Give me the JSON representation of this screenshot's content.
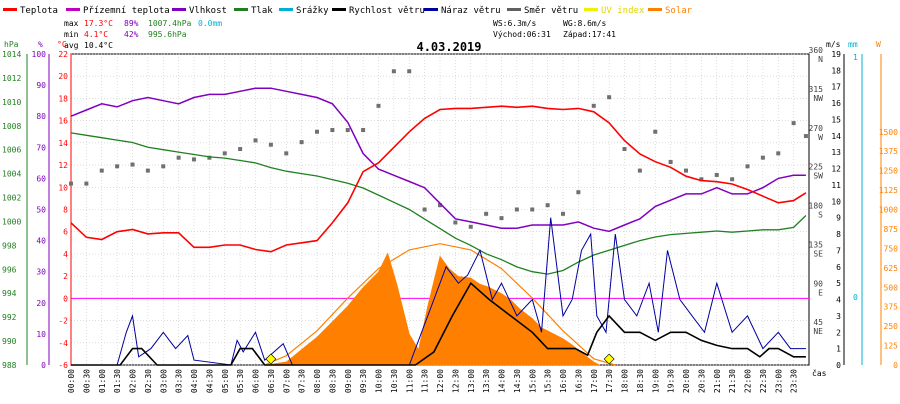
{
  "legend": [
    {
      "label": "Teplota",
      "color": "#ff0000"
    },
    {
      "label": "Přízemní teplota",
      "color": "#c000c0"
    },
    {
      "label": "Vlhkost",
      "color": "#8000c0"
    },
    {
      "label": "Tlak",
      "color": "#208020"
    },
    {
      "label": "Srážky",
      "color": "#00b0d0"
    },
    {
      "label": "Rychlost větru",
      "color": "#000000"
    },
    {
      "label": "Náraz větru",
      "color": "#0000a0"
    },
    {
      "label": "Směr větru",
      "color": "#606060"
    },
    {
      "label": "UV index",
      "color": "#f0f000"
    },
    {
      "label": "Solar",
      "color": "#ff8000"
    }
  ],
  "stats": {
    "max_label": "max",
    "max_temp": "17.3°C",
    "max_hum": "89%",
    "max_press": "1007.4hPa",
    "max_rain": "0.0mm",
    "min_label": "min",
    "min_temp": "4.1°C",
    "min_hum": "42%",
    "min_press": "995.6hPa",
    "avg_label": "avg",
    "avg_temp": "10.4°C",
    "ws": "WS:6.3m/s",
    "wg": "WG:8.6m/s",
    "sunrise": "Východ:06:31",
    "sunset": "Západ:17:41"
  },
  "axis_units": {
    "hpa": "hPa",
    "pct": "%",
    "temp": "°C",
    "ms": "m/s",
    "mm": "mm",
    "w": "W",
    "cas": "čas"
  },
  "chart_data": {
    "type": "line",
    "title": "4.03.2019",
    "xlabel": "čas",
    "x_ticks": [
      "00:00",
      "00:30",
      "01:00",
      "01:30",
      "02:00",
      "02:30",
      "03:00",
      "03:30",
      "04:00",
      "04:30",
      "05:00",
      "05:30",
      "06:00",
      "06:30",
      "07:00",
      "07:30",
      "08:00",
      "08:30",
      "09:00",
      "09:30",
      "10:00",
      "10:30",
      "11:00",
      "11:30",
      "12:00",
      "12:30",
      "13:00",
      "13:30",
      "14:00",
      "14:30",
      "15:00",
      "15:30",
      "16:00",
      "16:30",
      "17:00",
      "17:30",
      "18:00",
      "18:30",
      "19:00",
      "19:30",
      "20:00",
      "20:30",
      "21:00",
      "21:30",
      "22:00",
      "22:30",
      "23:00",
      "23:30"
    ],
    "axes": {
      "pressure_hpa": {
        "ylim": [
          988,
          1014
        ],
        "ticks": [
          "1014",
          "1012",
          "1010",
          "1008",
          "1006",
          "1004",
          "1002",
          "1000",
          "998",
          "996",
          "994",
          "992",
          "990",
          "988"
        ]
      },
      "humidity_pct": {
        "ylim": [
          0,
          100
        ],
        "ticks": [
          "100",
          "90",
          "80",
          "70",
          "60",
          "50",
          "40",
          "30",
          "20",
          "10",
          "0"
        ]
      },
      "temperature_c": {
        "ylim": [
          -6,
          22
        ],
        "ticks": [
          "22",
          "20",
          "18",
          "16",
          "14",
          "12",
          "10",
          "8",
          "6",
          "4",
          "2",
          "0",
          "-2",
          "-4",
          "-6"
        ]
      },
      "wind_dir": {
        "ticks": [
          "360",
          "315",
          "270",
          "225",
          "180",
          "135",
          "90",
          "45"
        ],
        "labels": [
          "N",
          "NW",
          "W",
          "SW",
          "S",
          "SE",
          "E",
          "NE"
        ]
      },
      "wind_ms": {
        "ylim": [
          0,
          19
        ],
        "ticks": [
          "19",
          "18",
          "17",
          "16",
          "15",
          "14",
          "13",
          "12",
          "11",
          "10",
          "9",
          "8",
          "7",
          "6",
          "5",
          "4",
          "3",
          "2",
          "1",
          "0"
        ]
      },
      "rain_mm": {
        "ticks": [
          "1",
          "0"
        ]
      },
      "solar_w": {
        "ylim": [
          0,
          2000
        ],
        "ticks": [
          "1500",
          "1375",
          "1250",
          "1125",
          "1000",
          "875",
          "750",
          "625",
          "500",
          "375",
          "250",
          "125",
          "0"
        ]
      }
    },
    "series": [
      {
        "name": "Teplota",
        "unit": "°C",
        "x": [
          0,
          0.5,
          1,
          1.5,
          2,
          2.5,
          3,
          3.5,
          4,
          4.5,
          5,
          5.5,
          6,
          6.5,
          7,
          7.5,
          8,
          8.5,
          9,
          9.5,
          10,
          10.5,
          11,
          11.5,
          12,
          12.5,
          13,
          13.5,
          14,
          14.5,
          15,
          15.5,
          16,
          16.5,
          17,
          17.5,
          18,
          18.5,
          19,
          19.5,
          20,
          20.5,
          21,
          21.5,
          22,
          22.5,
          23,
          23.5,
          23.9
        ],
        "values": [
          6.8,
          5.5,
          5.3,
          6.0,
          6.2,
          5.8,
          5.9,
          5.9,
          4.6,
          4.6,
          4.8,
          4.8,
          4.4,
          4.2,
          4.8,
          5.0,
          5.2,
          6.8,
          8.6,
          11.4,
          12.2,
          13.6,
          15.0,
          16.2,
          17.0,
          17.1,
          17.1,
          17.2,
          17.3,
          17.2,
          17.3,
          17.1,
          17.0,
          17.1,
          16.8,
          15.8,
          14.2,
          13.0,
          12.3,
          11.8,
          11.0,
          10.6,
          10.5,
          10.3,
          9.8,
          9.2,
          8.6,
          8.8,
          9.5
        ]
      },
      {
        "name": "Vlhkost",
        "unit": "%",
        "x": [
          0,
          0.5,
          1,
          1.5,
          2,
          2.5,
          3,
          3.5,
          4,
          4.5,
          5,
          5.5,
          6,
          6.5,
          7,
          7.5,
          8,
          8.5,
          9,
          9.5,
          10,
          10.5,
          11,
          11.5,
          12,
          12.5,
          13,
          13.5,
          14,
          14.5,
          15,
          15.5,
          16,
          16.5,
          17,
          17.5,
          18,
          18.5,
          19,
          19.5,
          20,
          20.5,
          21,
          21.5,
          22,
          22.5,
          23,
          23.5,
          23.9
        ],
        "values": [
          80,
          82,
          84,
          83,
          85,
          86,
          85,
          84,
          86,
          87,
          87,
          88,
          89,
          89,
          88,
          87,
          86,
          84,
          78,
          68,
          63,
          61,
          59,
          57,
          52,
          47,
          46,
          45,
          44,
          44,
          45,
          45,
          45,
          46,
          44,
          43,
          45,
          47,
          51,
          53,
          55,
          55,
          57,
          55,
          55,
          57,
          60,
          61,
          61
        ]
      },
      {
        "name": "Tlak",
        "unit": "hPa",
        "x": [
          0,
          0.5,
          1,
          1.5,
          2,
          2.5,
          3,
          3.5,
          4,
          4.5,
          5,
          5.5,
          6,
          6.5,
          7,
          7.5,
          8,
          8.5,
          9,
          9.5,
          10,
          10.5,
          11,
          11.5,
          12,
          12.5,
          13,
          13.5,
          14,
          14.5,
          15,
          15.5,
          16,
          16.5,
          17,
          17.5,
          18,
          18.5,
          19,
          19.5,
          20,
          20.5,
          21,
          21.5,
          22,
          22.5,
          23,
          23.5,
          23.9
        ],
        "values": [
          1007.4,
          1007.2,
          1007.0,
          1006.8,
          1006.6,
          1006.2,
          1006.0,
          1005.8,
          1005.6,
          1005.4,
          1005.3,
          1005.1,
          1004.9,
          1004.5,
          1004.2,
          1004.0,
          1003.8,
          1003.5,
          1003.2,
          1002.8,
          1002.2,
          1001.6,
          1001.0,
          1000.2,
          999.4,
          998.6,
          998.0,
          997.3,
          996.8,
          996.2,
          995.8,
          995.6,
          995.9,
          996.6,
          997.2,
          997.6,
          998.0,
          998.4,
          998.7,
          998.9,
          999.0,
          999.1,
          999.2,
          999.1,
          999.2,
          999.3,
          999.3,
          999.5,
          1000.5
        ]
      },
      {
        "name": "Rychlost větru",
        "unit": "m/s",
        "x": [
          0,
          1.6,
          2.0,
          2.3,
          2.8,
          5.2,
          5.5,
          5.9,
          6.3,
          7.5,
          11.2,
          11.8,
          12.4,
          13.0,
          13.6,
          14.3,
          15.0,
          15.5,
          16.0,
          16.4,
          16.8,
          17.1,
          17.5,
          18.0,
          18.5,
          19.0,
          19.5,
          20.0,
          20.5,
          21.0,
          21.5,
          22.0,
          22.4,
          22.7,
          23.0,
          23.5,
          23.9
        ],
        "values": [
          0,
          0,
          1,
          1,
          0,
          0,
          1,
          1,
          0,
          0,
          0,
          0.8,
          3,
          5,
          4,
          3,
          2,
          1,
          1,
          1,
          0.6,
          2,
          3,
          2,
          2,
          1.5,
          2,
          2,
          1.5,
          1.2,
          1,
          1,
          0.5,
          1,
          1,
          0.5,
          0.5
        ]
      },
      {
        "name": "Náraz větru",
        "unit": "m/s",
        "x": [
          0,
          1.5,
          1.8,
          2.0,
          2.2,
          2.6,
          3.0,
          3.4,
          3.8,
          4.0,
          5.2,
          5.4,
          5.6,
          6.0,
          6.3,
          6.9,
          7.2,
          8.0,
          11.0,
          11.4,
          11.8,
          12.2,
          12.6,
          12.9,
          13.3,
          13.7,
          14.0,
          14.5,
          15.0,
          15.3,
          15.6,
          16.0,
          16.3,
          16.6,
          16.9,
          17.1,
          17.4,
          17.7,
          18.0,
          18.4,
          18.8,
          19.1,
          19.4,
          19.8,
          20.2,
          20.6,
          21.0,
          21.5,
          22.0,
          22.5,
          23.0,
          23.4,
          23.9
        ],
        "values": [
          0,
          0,
          2,
          3,
          0.5,
          1,
          2,
          1,
          1.8,
          0.3,
          0,
          1.5,
          0.8,
          2,
          0.3,
          1.3,
          0,
          0,
          0,
          2,
          4,
          6,
          5,
          5.5,
          7,
          4,
          5,
          3,
          4,
          2,
          9,
          3,
          4,
          7,
          8,
          3,
          2,
          8,
          4,
          3,
          5,
          2,
          7,
          4,
          3,
          2,
          5,
          2,
          3,
          1,
          2,
          1,
          1
        ]
      },
      {
        "name": "Směr větru",
        "unit": "°",
        "x": [
          0,
          0.5,
          1,
          1.5,
          2,
          2.5,
          3,
          3.5,
          4,
          4.5,
          5,
          5.5,
          6,
          6.5,
          7,
          7.5,
          8,
          8.5,
          9,
          9.5,
          10,
          10.5,
          11,
          11.5,
          12,
          12.5,
          13,
          13.5,
          14,
          14.5,
          15,
          15.5,
          16,
          16.5,
          17,
          17.5,
          18,
          18.5,
          19,
          19.5,
          20,
          20.5,
          21,
          21.5,
          22,
          22.5,
          23,
          23.5,
          23.9
        ],
        "values": [
          210,
          210,
          225,
          230,
          232,
          225,
          230,
          240,
          238,
          240,
          245,
          250,
          260,
          255,
          245,
          258,
          270,
          272,
          272,
          272,
          300,
          340,
          340,
          180,
          185,
          165,
          160,
          175,
          170,
          180,
          180,
          185,
          175,
          200,
          300,
          310,
          250,
          225,
          270,
          235,
          225,
          215,
          220,
          215,
          230,
          240,
          245,
          280,
          265
        ]
      },
      {
        "name": "Solar",
        "unit": "W",
        "x": [
          6.3,
          7.0,
          7.5,
          8.0,
          8.5,
          9.0,
          9.5,
          10.0,
          10.3,
          10.6,
          11.0,
          11.3,
          11.6,
          12.0,
          12.3,
          12.6,
          13.0,
          13.3,
          13.6,
          14.0,
          14.3,
          14.6,
          15.0,
          15.3,
          15.6,
          16.0,
          16.3,
          16.6,
          17.0,
          17.2
        ],
        "values": [
          0,
          20,
          100,
          180,
          280,
          380,
          500,
          600,
          720,
          520,
          200,
          100,
          380,
          700,
          620,
          570,
          560,
          520,
          500,
          460,
          420,
          360,
          300,
          240,
          210,
          170,
          130,
          80,
          20,
          0
        ]
      },
      {
        "name": "Solar theoretical",
        "unit": "W",
        "x": [
          6.3,
          7,
          8,
          9,
          10,
          11,
          12,
          13,
          14,
          15,
          16,
          17,
          17.7
        ],
        "values": [
          0,
          60,
          220,
          430,
          620,
          740,
          780,
          740,
          620,
          430,
          220,
          40,
          0
        ]
      }
    ],
    "uv_markers": [
      {
        "x": 6.5,
        "value": 0
      },
      {
        "x": 17.5,
        "value": 0
      }
    ]
  }
}
